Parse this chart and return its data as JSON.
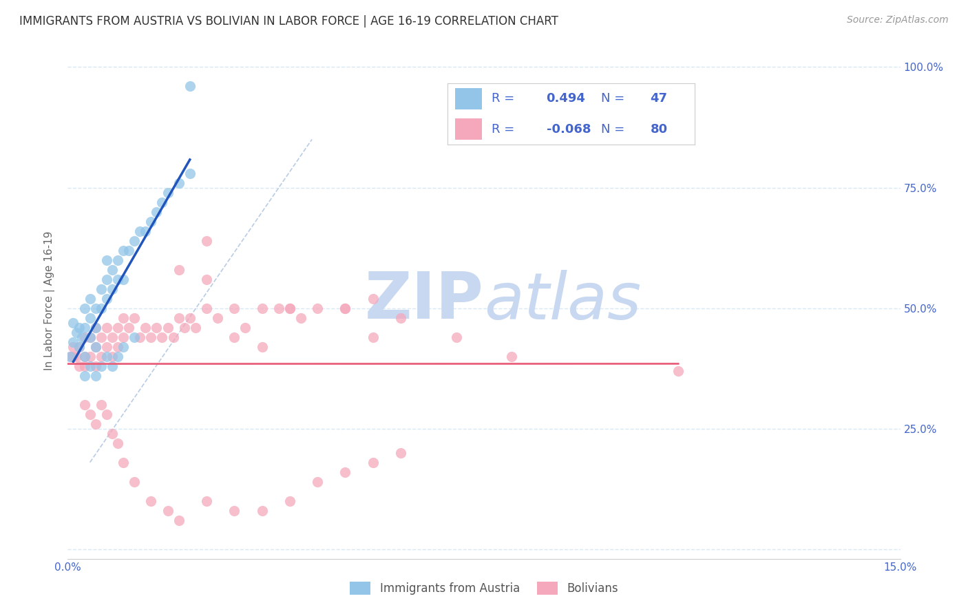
{
  "title": "IMMIGRANTS FROM AUSTRIA VS BOLIVIAN IN LABOR FORCE | AGE 16-19 CORRELATION CHART",
  "source": "Source: ZipAtlas.com",
  "ylabel": "In Labor Force | Age 16-19",
  "xlim": [
    0.0,
    0.15
  ],
  "ylim": [
    -0.02,
    1.05
  ],
  "ytick_positions": [
    0.0,
    0.25,
    0.5,
    0.75,
    1.0
  ],
  "ytick_labels_right": [
    "",
    "25.0%",
    "50.0%",
    "75.0%",
    "100.0%"
  ],
  "xtick_positions": [
    0.0,
    0.05,
    0.1,
    0.15
  ],
  "xtick_labels": [
    "0.0%",
    "",
    "",
    "15.0%"
  ],
  "austria_color": "#92C5E8",
  "bolivia_color": "#F5A8BC",
  "austria_line_color": "#2255BB",
  "bolivia_line_color": "#E8607A",
  "dashed_line_color": "#B8CCE4",
  "legend_text_color": "#4466CC",
  "background_color": "#FFFFFF",
  "grid_color": "#D8E8F4",
  "austria_R": 0.494,
  "austria_N": 47,
  "bolivia_R": -0.068,
  "bolivia_N": 80,
  "austria_x": [
    0.0005,
    0.001,
    0.001,
    0.0015,
    0.002,
    0.002,
    0.0025,
    0.003,
    0.003,
    0.003,
    0.004,
    0.004,
    0.004,
    0.005,
    0.005,
    0.005,
    0.006,
    0.006,
    0.007,
    0.007,
    0.007,
    0.008,
    0.008,
    0.009,
    0.009,
    0.01,
    0.01,
    0.011,
    0.012,
    0.013,
    0.014,
    0.015,
    0.016,
    0.017,
    0.018,
    0.02,
    0.022,
    0.003,
    0.004,
    0.005,
    0.006,
    0.007,
    0.008,
    0.009,
    0.01,
    0.012,
    0.022
  ],
  "austria_y": [
    0.4,
    0.43,
    0.47,
    0.45,
    0.42,
    0.46,
    0.44,
    0.4,
    0.46,
    0.5,
    0.44,
    0.48,
    0.52,
    0.42,
    0.46,
    0.5,
    0.5,
    0.54,
    0.52,
    0.56,
    0.6,
    0.54,
    0.58,
    0.56,
    0.6,
    0.56,
    0.62,
    0.62,
    0.64,
    0.66,
    0.66,
    0.68,
    0.7,
    0.72,
    0.74,
    0.76,
    0.78,
    0.36,
    0.38,
    0.36,
    0.38,
    0.4,
    0.38,
    0.4,
    0.42,
    0.44,
    0.96
  ],
  "bolivia_x": [
    0.0005,
    0.001,
    0.001,
    0.0015,
    0.002,
    0.002,
    0.003,
    0.003,
    0.003,
    0.004,
    0.004,
    0.005,
    0.005,
    0.005,
    0.006,
    0.006,
    0.007,
    0.007,
    0.008,
    0.008,
    0.009,
    0.009,
    0.01,
    0.01,
    0.011,
    0.012,
    0.013,
    0.014,
    0.015,
    0.016,
    0.017,
    0.018,
    0.019,
    0.02,
    0.021,
    0.022,
    0.023,
    0.025,
    0.027,
    0.03,
    0.032,
    0.035,
    0.038,
    0.04,
    0.042,
    0.045,
    0.05,
    0.055,
    0.06,
    0.07,
    0.08,
    0.11,
    0.003,
    0.004,
    0.005,
    0.006,
    0.007,
    0.008,
    0.009,
    0.01,
    0.012,
    0.015,
    0.018,
    0.02,
    0.025,
    0.03,
    0.035,
    0.04,
    0.045,
    0.05,
    0.055,
    0.06,
    0.03,
    0.035,
    0.025,
    0.02,
    0.04,
    0.05,
    0.025,
    0.055
  ],
  "bolivia_y": [
    0.4,
    0.4,
    0.42,
    0.4,
    0.38,
    0.42,
    0.38,
    0.4,
    0.44,
    0.4,
    0.44,
    0.38,
    0.42,
    0.46,
    0.4,
    0.44,
    0.42,
    0.46,
    0.4,
    0.44,
    0.42,
    0.46,
    0.44,
    0.48,
    0.46,
    0.48,
    0.44,
    0.46,
    0.44,
    0.46,
    0.44,
    0.46,
    0.44,
    0.48,
    0.46,
    0.48,
    0.46,
    0.5,
    0.48,
    0.44,
    0.46,
    0.5,
    0.5,
    0.5,
    0.48,
    0.5,
    0.5,
    0.44,
    0.48,
    0.44,
    0.4,
    0.37,
    0.3,
    0.28,
    0.26,
    0.3,
    0.28,
    0.24,
    0.22,
    0.18,
    0.14,
    0.1,
    0.08,
    0.06,
    0.1,
    0.08,
    0.08,
    0.1,
    0.14,
    0.16,
    0.18,
    0.2,
    0.5,
    0.42,
    0.56,
    0.58,
    0.5,
    0.5,
    0.64,
    0.52
  ],
  "watermark_zip": "ZIP",
  "watermark_atlas": "atlas",
  "watermark_color": "#C8D8F0"
}
